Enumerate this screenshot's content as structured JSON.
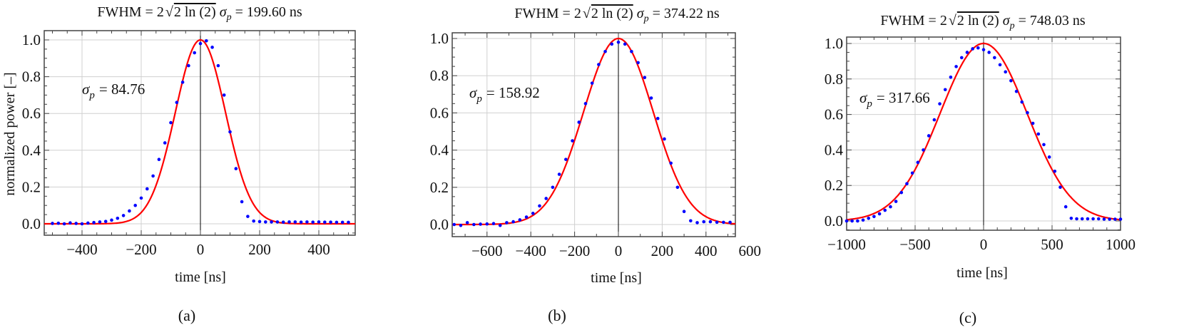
{
  "colors": {
    "measured": "#0000ff",
    "fit": "#ff0000",
    "grid": "#d0d0d0",
    "frame": "#444444"
  },
  "chart_data": [
    {
      "type": "scatter",
      "panel_label": "(a)",
      "title": {
        "prefix": "FWHM = 2",
        "radicand": "2 ln (2)",
        "sigma": "σ",
        "sub": "p",
        "suffix": "= 199.60 ns"
      },
      "annotation": {
        "sigma": "σ",
        "sub": "p",
        "text": "= 84.76"
      },
      "xlabel": "time  [ns]",
      "ylabel": "normalized power [–]",
      "xlim": [
        -500,
        500
      ],
      "ylim": [
        -0.05,
        1.05
      ],
      "xticks": [
        -400,
        -200,
        0,
        200,
        400
      ],
      "xtick_labels": [
        "−400",
        "−200",
        "0",
        "200",
        "400"
      ],
      "yticks": [
        0,
        0.2,
        0.4,
        0.6,
        0.8,
        1.0
      ],
      "ytick_labels": [
        "0.0",
        "0.2",
        "0.4",
        "0.6",
        "0.8",
        "1.0"
      ],
      "grid": true,
      "fit": {
        "kind": "gaussian",
        "sigma": 84.76,
        "center": 0,
        "amplitude": 1
      },
      "measured": {
        "x": [
          -500,
          -480,
          -460,
          -440,
          -420,
          -400,
          -380,
          -360,
          -340,
          -320,
          -300,
          -280,
          -260,
          -240,
          -220,
          -200,
          -180,
          -160,
          -140,
          -120,
          -100,
          -80,
          -60,
          -40,
          -20,
          0,
          20,
          40,
          60,
          80,
          100,
          120,
          140,
          160,
          180,
          200,
          220,
          240,
          260,
          280,
          300,
          320,
          340,
          360,
          380,
          400,
          420,
          440,
          460,
          480,
          500
        ],
        "y": [
          0.002,
          0.003,
          0.0,
          0.005,
          0.002,
          0.0,
          0.004,
          0.007,
          0.01,
          0.013,
          0.02,
          0.03,
          0.045,
          0.07,
          0.1,
          0.14,
          0.19,
          0.26,
          0.35,
          0.44,
          0.55,
          0.66,
          0.77,
          0.86,
          0.93,
          0.98,
          0.995,
          0.96,
          0.86,
          0.7,
          0.5,
          0.3,
          0.12,
          0.04,
          0.015,
          0.012,
          0.01,
          0.01,
          0.01,
          0.009,
          0.01,
          0.01,
          0.009,
          0.01,
          0.009,
          0.01,
          0.009,
          0.009,
          0.008,
          0.008,
          0.008
        ]
      }
    },
    {
      "type": "scatter",
      "panel_label": "(b)",
      "title": {
        "prefix": "FWHM = 2",
        "radicand": "2 ln (2)",
        "sigma": "σ",
        "sub": "p",
        "suffix": "= 374.22 ns"
      },
      "annotation": {
        "sigma": "σ",
        "sub": "p",
        "text": "= 158.92"
      },
      "xlabel": "time  [ns]",
      "ylabel": "",
      "xlim": [
        -750,
        750
      ],
      "ylim": [
        -0.05,
        1.05
      ],
      "xticks": [
        -600,
        -400,
        -200,
        0,
        200,
        400,
        600
      ],
      "xtick_labels": [
        "−600",
        "−400",
        "−200",
        "0",
        "200",
        "400",
        "600"
      ],
      "yticks": [
        0,
        0.2,
        0.4,
        0.6,
        0.8,
        1.0
      ],
      "ytick_labels": [
        "0.0",
        "0.2",
        "0.4",
        "0.6",
        "0.8",
        "1.0"
      ],
      "grid": true,
      "fit": {
        "kind": "gaussian",
        "sigma": 158.92,
        "center": 0,
        "amplitude": 1
      },
      "measured": {
        "x": [
          -750,
          -720,
          -690,
          -660,
          -630,
          -600,
          -570,
          -540,
          -510,
          -480,
          -450,
          -420,
          -390,
          -360,
          -330,
          -300,
          -270,
          -240,
          -210,
          -180,
          -150,
          -120,
          -90,
          -60,
          -30,
          0,
          30,
          60,
          90,
          120,
          150,
          180,
          210,
          240,
          270,
          300,
          330,
          360,
          390,
          420,
          450,
          480,
          510,
          540,
          570,
          600,
          630,
          660,
          690,
          720,
          750
        ],
        "y": [
          0.0,
          -0.005,
          0.01,
          0.0,
          0.002,
          0.003,
          0.005,
          -0.005,
          0.01,
          0.015,
          0.025,
          0.04,
          0.06,
          0.1,
          0.14,
          0.2,
          0.27,
          0.35,
          0.45,
          0.55,
          0.65,
          0.76,
          0.86,
          0.93,
          0.97,
          0.98,
          0.97,
          0.93,
          0.87,
          0.79,
          0.68,
          0.57,
          0.46,
          0.33,
          0.2,
          0.07,
          0.02,
          0.01,
          0.015,
          0.015,
          0.012,
          0.012,
          0.012,
          0.01,
          0.01,
          0.012,
          0.01,
          0.01,
          0.01,
          0.01,
          0.01
        ]
      }
    },
    {
      "type": "scatter",
      "panel_label": "(c)",
      "title": {
        "prefix": "FWHM = 2",
        "radicand": "2 ln (2)",
        "sigma": "σ",
        "sub": "p",
        "suffix": "= 748.03 ns"
      },
      "annotation": {
        "sigma": "σ",
        "sub": "p",
        "text": "= 317.66"
      },
      "xlabel": "time  [ns]",
      "ylabel": "",
      "xlim": [
        -1000,
        1000
      ],
      "ylim": [
        -0.05,
        1.02
      ],
      "xticks": [
        -1000,
        -500,
        0,
        500,
        1000
      ],
      "xtick_labels": [
        "−1000",
        "−500",
        "0",
        "500",
        "1000"
      ],
      "yticks": [
        0,
        0.2,
        0.4,
        0.6,
        0.8,
        1.0
      ],
      "ytick_labels": [
        "0.0",
        "0.2",
        "0.4",
        "0.6",
        "0.8",
        "1.0"
      ],
      "grid": true,
      "fit": {
        "kind": "gaussian",
        "sigma": 317.66,
        "center": 0,
        "amplitude": 1
      },
      "measured": {
        "x": [
          -1000,
          -960,
          -920,
          -880,
          -840,
          -800,
          -760,
          -720,
          -680,
          -640,
          -600,
          -560,
          -520,
          -480,
          -440,
          -400,
          -360,
          -320,
          -280,
          -240,
          -200,
          -160,
          -120,
          -80,
          -40,
          0,
          40,
          80,
          120,
          160,
          200,
          240,
          280,
          320,
          360,
          400,
          440,
          480,
          520,
          560,
          600,
          640,
          680,
          720,
          760,
          800,
          840,
          880,
          920,
          960,
          1000
        ],
        "y": [
          0.0,
          0.0,
          0.0,
          0.005,
          0.015,
          0.025,
          0.04,
          0.06,
          0.08,
          0.11,
          0.16,
          0.21,
          0.27,
          0.33,
          0.4,
          0.48,
          0.57,
          0.66,
          0.74,
          0.81,
          0.87,
          0.92,
          0.95,
          0.97,
          0.975,
          0.965,
          0.95,
          0.92,
          0.88,
          0.84,
          0.79,
          0.73,
          0.67,
          0.61,
          0.55,
          0.49,
          0.43,
          0.36,
          0.28,
          0.19,
          0.08,
          0.015,
          0.012,
          0.012,
          0.012,
          0.012,
          0.012,
          0.01,
          0.01,
          0.01,
          0.01
        ]
      }
    }
  ]
}
